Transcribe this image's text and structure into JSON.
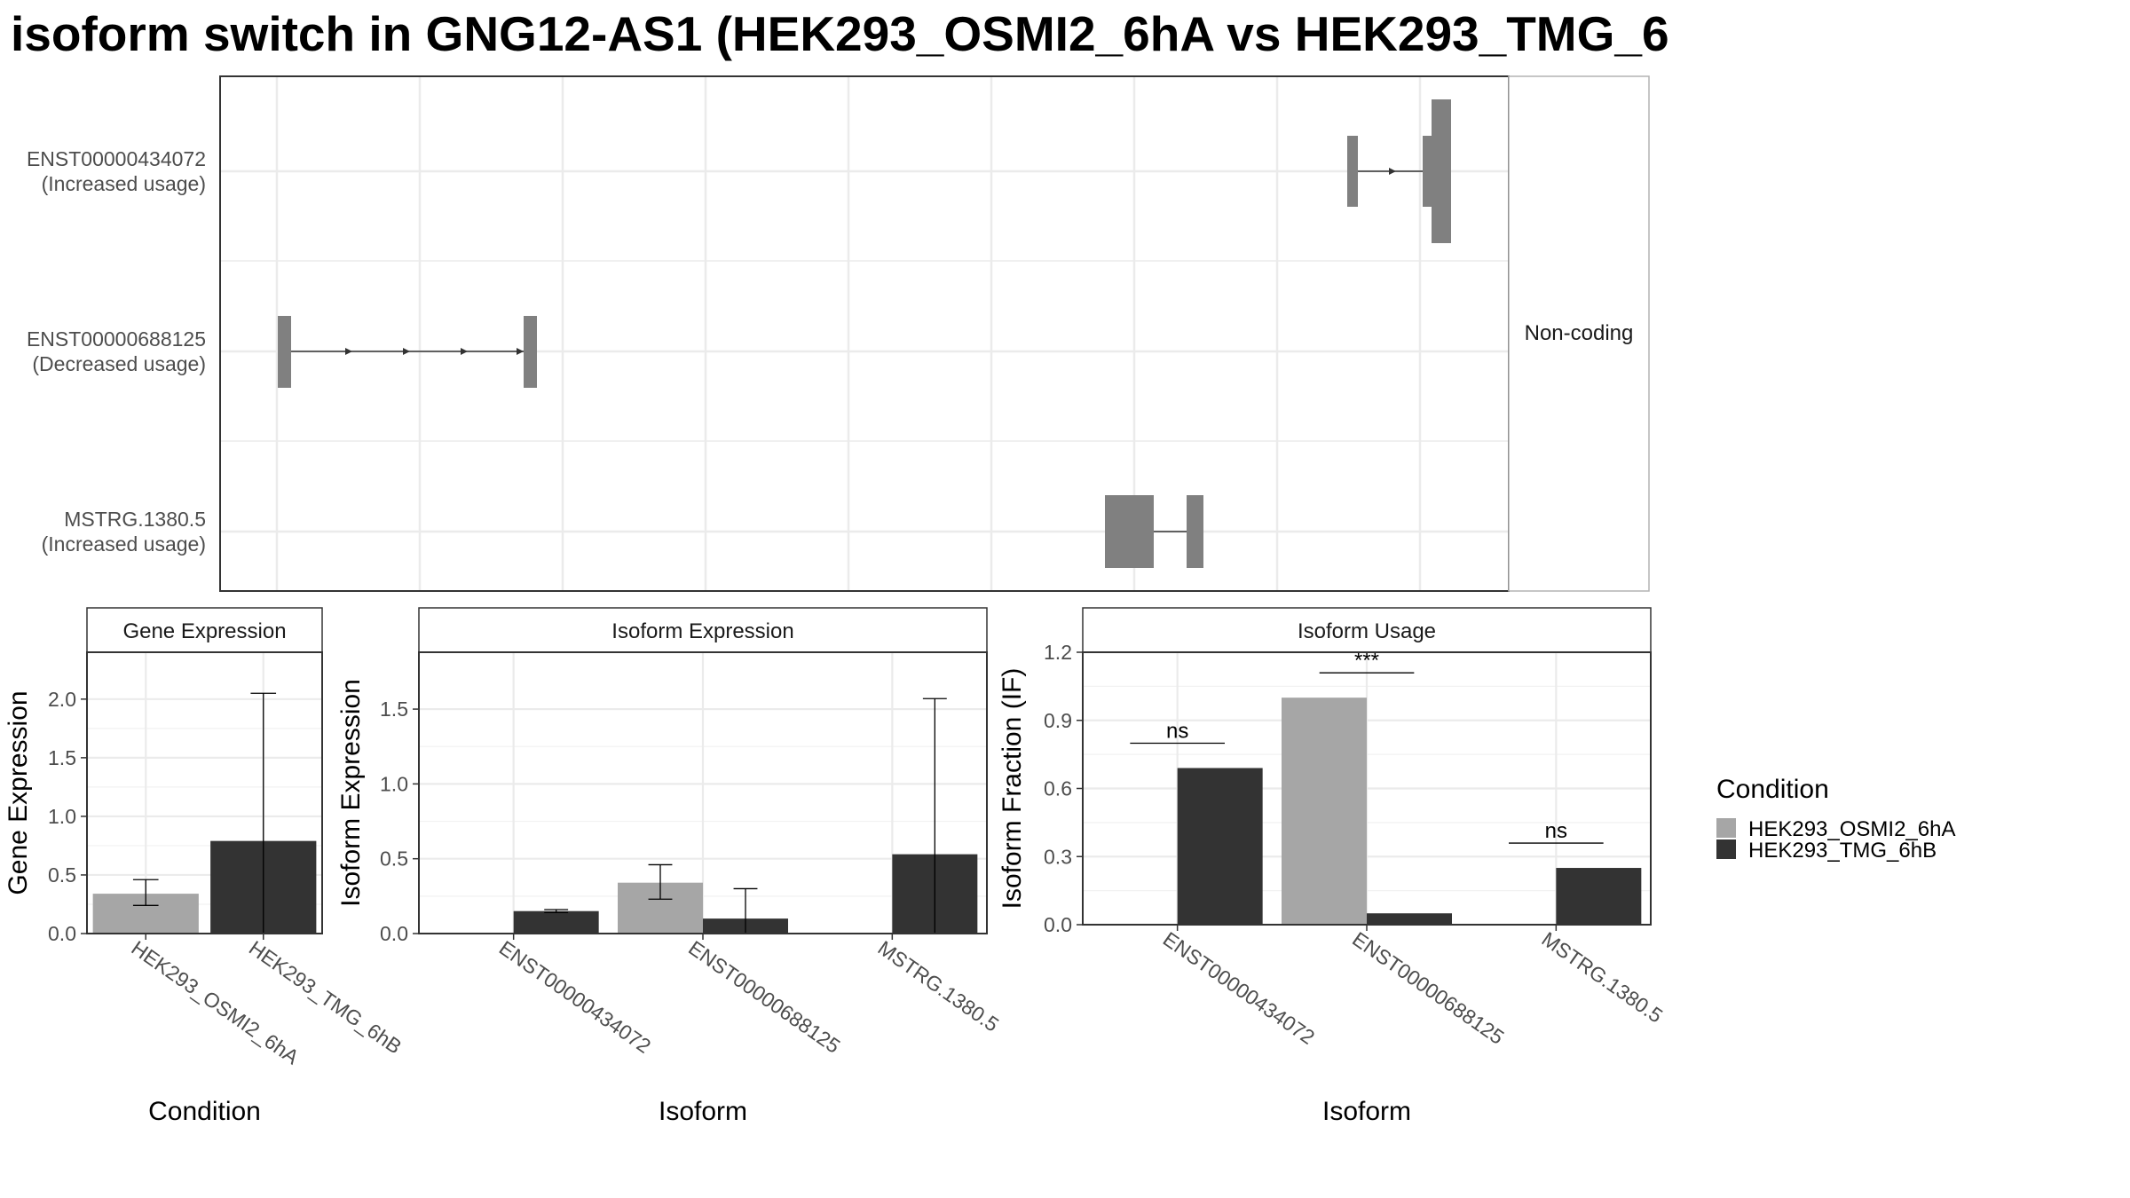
{
  "title": "isoform switch in GNG12-AS1 (HEK293_OSMI2_6hA vs HEK293_TMG_6",
  "structure": {
    "strip_label": "Non-coding",
    "isoforms": [
      {
        "id": "ENST00000434072",
        "usage": "(Increased usage)"
      },
      {
        "id": "ENST00000688125",
        "usage": "(Decreased usage)"
      },
      {
        "id": "MSTRG.1380.5",
        "usage": "(Increased usage)"
      }
    ]
  },
  "legend": {
    "title": "Condition",
    "items": [
      {
        "label": "HEK293_OSMI2_6hA",
        "color": "#a6a6a6"
      },
      {
        "label": "HEK293_TMG_6hB",
        "color": "#333333"
      }
    ]
  },
  "chart_data": [
    {
      "type": "bar",
      "title": "Gene Expression",
      "xlabel": "Condition",
      "ylabel": "Gene Expression",
      "ylim": [
        0,
        2.4
      ],
      "yticks": [
        "0.0",
        "0.5",
        "1.0",
        "1.5",
        "2.0"
      ],
      "categories": [
        "HEK293_OSMI2_6hA",
        "HEK293_TMG_6hB"
      ],
      "values": [
        0.34,
        0.79
      ],
      "errors": [
        [
          0.24,
          0.46
        ],
        [
          0.0,
          2.05
        ]
      ],
      "colors": [
        "#a6a6a6",
        "#333333"
      ]
    },
    {
      "type": "bar",
      "title": "Isoform Expression",
      "xlabel": "Isoform",
      "ylabel": "Isoform Expression",
      "ylim": [
        0,
        1.88
      ],
      "yticks": [
        "0.0",
        "0.5",
        "1.0",
        "1.5"
      ],
      "categories": [
        "ENST00000434072",
        "ENST00000688125",
        "MSTRG.1380.5"
      ],
      "series": [
        {
          "name": "HEK293_OSMI2_6hA",
          "values": [
            0.0,
            0.34,
            0.0
          ],
          "errors": [
            [
              0.0,
              0.0
            ],
            [
              0.23,
              0.46
            ],
            [
              0.0,
              0.0
            ]
          ]
        },
        {
          "name": "HEK293_TMG_6hB",
          "values": [
            0.15,
            0.1,
            0.53
          ],
          "errors": [
            [
              0.14,
              0.16
            ],
            [
              0.0,
              0.3
            ],
            [
              0.0,
              1.57
            ]
          ]
        }
      ]
    },
    {
      "type": "bar",
      "title": "Isoform Usage",
      "xlabel": "Isoform",
      "ylabel": "Isoform Fraction (IF)",
      "ylim": [
        0,
        1.2
      ],
      "yticks": [
        "0.0",
        "0.3",
        "0.6",
        "0.9",
        "1.2"
      ],
      "categories": [
        "ENST00000434072",
        "ENST00000688125",
        "MSTRG.1380.5"
      ],
      "series": [
        {
          "name": "HEK293_OSMI2_6hA",
          "values": [
            0.0,
            1.0,
            0.0
          ]
        },
        {
          "name": "HEK293_TMG_6hB",
          "values": [
            0.69,
            0.05,
            0.25
          ]
        }
      ],
      "annotations": [
        "ns",
        "***",
        "ns"
      ]
    }
  ]
}
